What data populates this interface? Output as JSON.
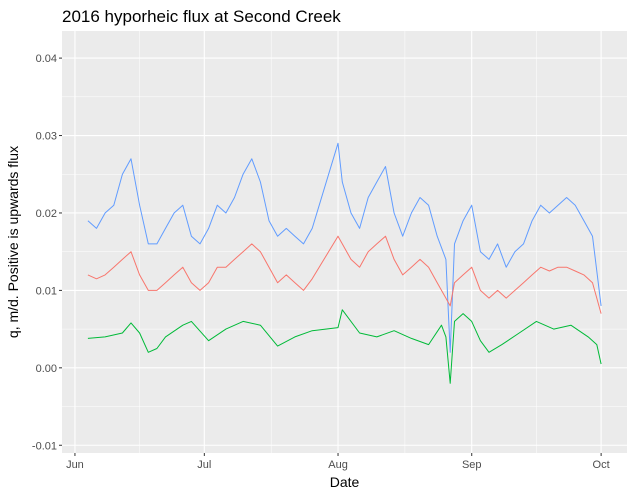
{
  "chart_data": {
    "type": "line",
    "title": "2016 hyporheic flux at Second Creek",
    "xlabel": "Date",
    "ylabel": "q, m/d. Positive is upwards flux",
    "x_ticks": [
      {
        "label": "Jun",
        "date": "2016-06-01"
      },
      {
        "label": "Jul",
        "date": "2016-07-01"
      },
      {
        "label": "Aug",
        "date": "2016-08-01"
      },
      {
        "label": "Sep",
        "date": "2016-09-01"
      },
      {
        "label": "Oct",
        "date": "2016-10-01"
      }
    ],
    "y_ticks": [
      -0.01,
      0.0,
      0.01,
      0.02,
      0.03,
      0.04
    ],
    "y_tick_labels": [
      "-0.01",
      "0.00",
      "0.01",
      "0.02",
      "0.03",
      "0.04"
    ],
    "xlim": [
      "2016-05-29",
      "2016-10-07"
    ],
    "ylim": [
      -0.011,
      0.0435
    ],
    "grid": true,
    "legend": "none",
    "background": "#ebebeb",
    "series": [
      {
        "color": "#619cff",
        "x": [
          "2016-06-04",
          "2016-06-06",
          "2016-06-08",
          "2016-06-10",
          "2016-06-12",
          "2016-06-14",
          "2016-06-16",
          "2016-06-18",
          "2016-06-20",
          "2016-06-22",
          "2016-06-24",
          "2016-06-26",
          "2016-06-28",
          "2016-06-30",
          "2016-07-02",
          "2016-07-04",
          "2016-07-06",
          "2016-07-08",
          "2016-07-10",
          "2016-07-12",
          "2016-07-14",
          "2016-07-16",
          "2016-07-18",
          "2016-07-20",
          "2016-07-22",
          "2016-07-24",
          "2016-07-26",
          "2016-08-01",
          "2016-08-02",
          "2016-08-04",
          "2016-08-06",
          "2016-08-08",
          "2016-08-10",
          "2016-08-12",
          "2016-08-14",
          "2016-08-16",
          "2016-08-18",
          "2016-08-20",
          "2016-08-22",
          "2016-08-24",
          "2016-08-26",
          "2016-08-27",
          "2016-08-28",
          "2016-08-30",
          "2016-09-01",
          "2016-09-03",
          "2016-09-05",
          "2016-09-07",
          "2016-09-09",
          "2016-09-11",
          "2016-09-13",
          "2016-09-15",
          "2016-09-17",
          "2016-09-19",
          "2016-09-21",
          "2016-09-23",
          "2016-09-25",
          "2016-09-27",
          "2016-09-29",
          "2016-10-01"
        ],
        "y": [
          0.019,
          0.018,
          0.02,
          0.021,
          0.025,
          0.027,
          0.021,
          0.016,
          0.016,
          0.018,
          0.02,
          0.021,
          0.017,
          0.016,
          0.018,
          0.021,
          0.02,
          0.022,
          0.025,
          0.027,
          0.024,
          0.019,
          0.017,
          0.018,
          0.017,
          0.016,
          0.018,
          0.029,
          0.024,
          0.02,
          0.018,
          0.022,
          0.024,
          0.026,
          0.02,
          0.017,
          0.02,
          0.022,
          0.021,
          0.017,
          0.014,
          0.002,
          0.016,
          0.019,
          0.021,
          0.015,
          0.014,
          0.016,
          0.013,
          0.015,
          0.016,
          0.019,
          0.021,
          0.02,
          0.021,
          0.022,
          0.021,
          0.019,
          0.017,
          0.008
        ]
      },
      {
        "color": "#f8766d",
        "x": [
          "2016-06-04",
          "2016-06-06",
          "2016-06-08",
          "2016-06-10",
          "2016-06-12",
          "2016-06-14",
          "2016-06-16",
          "2016-06-18",
          "2016-06-20",
          "2016-06-22",
          "2016-06-24",
          "2016-06-26",
          "2016-06-28",
          "2016-06-30",
          "2016-07-02",
          "2016-07-04",
          "2016-07-06",
          "2016-07-08",
          "2016-07-10",
          "2016-07-12",
          "2016-07-14",
          "2016-07-16",
          "2016-07-18",
          "2016-07-20",
          "2016-07-22",
          "2016-07-24",
          "2016-07-26",
          "2016-08-01",
          "2016-08-02",
          "2016-08-04",
          "2016-08-06",
          "2016-08-08",
          "2016-08-10",
          "2016-08-12",
          "2016-08-14",
          "2016-08-16",
          "2016-08-18",
          "2016-08-20",
          "2016-08-22",
          "2016-08-24",
          "2016-08-26",
          "2016-08-27",
          "2016-08-28",
          "2016-08-30",
          "2016-09-01",
          "2016-09-03",
          "2016-09-05",
          "2016-09-07",
          "2016-09-09",
          "2016-09-11",
          "2016-09-13",
          "2016-09-15",
          "2016-09-17",
          "2016-09-19",
          "2016-09-21",
          "2016-09-23",
          "2016-09-25",
          "2016-09-27",
          "2016-09-29",
          "2016-10-01"
        ],
        "y": [
          0.012,
          0.0115,
          0.012,
          0.013,
          0.014,
          0.015,
          0.012,
          0.01,
          0.01,
          0.011,
          0.012,
          0.013,
          0.011,
          0.01,
          0.011,
          0.013,
          0.013,
          0.014,
          0.015,
          0.016,
          0.015,
          0.013,
          0.011,
          0.012,
          0.011,
          0.01,
          0.0115,
          0.017,
          0.016,
          0.014,
          0.013,
          0.015,
          0.016,
          0.017,
          0.014,
          0.012,
          0.013,
          0.014,
          0.013,
          0.011,
          0.009,
          0.008,
          0.011,
          0.012,
          0.013,
          0.01,
          0.009,
          0.01,
          0.009,
          0.01,
          0.011,
          0.012,
          0.013,
          0.0125,
          0.013,
          0.013,
          0.0125,
          0.012,
          0.011,
          0.007
        ]
      },
      {
        "color": "#00ba38",
        "x": [
          "2016-06-04",
          "2016-06-08",
          "2016-06-12",
          "2016-06-14",
          "2016-06-16",
          "2016-06-18",
          "2016-06-20",
          "2016-06-22",
          "2016-06-26",
          "2016-06-28",
          "2016-07-02",
          "2016-07-06",
          "2016-07-10",
          "2016-07-14",
          "2016-07-18",
          "2016-07-22",
          "2016-07-26",
          "2016-08-01",
          "2016-08-02",
          "2016-08-06",
          "2016-08-10",
          "2016-08-14",
          "2016-08-18",
          "2016-08-22",
          "2016-08-25",
          "2016-08-26",
          "2016-08-27",
          "2016-08-28",
          "2016-08-30",
          "2016-09-01",
          "2016-09-03",
          "2016-09-05",
          "2016-09-08",
          "2016-09-12",
          "2016-09-16",
          "2016-09-20",
          "2016-09-24",
          "2016-09-28",
          "2016-09-30",
          "2016-10-01"
        ],
        "y": [
          0.0038,
          0.004,
          0.0045,
          0.0058,
          0.0045,
          0.002,
          0.0025,
          0.004,
          0.0055,
          0.006,
          0.0035,
          0.005,
          0.006,
          0.0055,
          0.0028,
          0.004,
          0.0048,
          0.0052,
          0.0075,
          0.0045,
          0.004,
          0.0048,
          0.0038,
          0.003,
          0.0055,
          0.004,
          -0.002,
          0.006,
          0.007,
          0.006,
          0.0035,
          0.002,
          0.003,
          0.0045,
          0.006,
          0.005,
          0.0055,
          0.004,
          0.003,
          0.0005
        ]
      }
    ]
  }
}
